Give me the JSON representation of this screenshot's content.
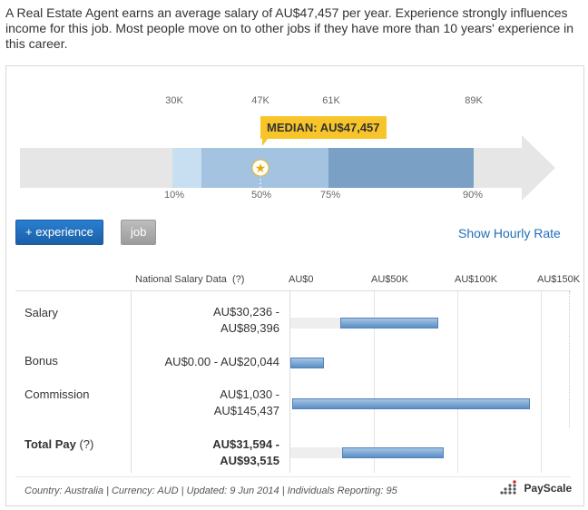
{
  "intro": "A Real Estate Agent earns an average salary of AU$47,457 per year. Experience strongly influences income for this job. Most people move on to other jobs if they have more than 10 years' experience in this career.",
  "range_chart": {
    "top_values": [
      "30K",
      "47K",
      "61K",
      "89K"
    ],
    "bottom_percentiles": [
      "10%",
      "50%",
      "75%",
      "90%"
    ],
    "median_label": "MEDIAN: AU$47,457",
    "segments": [
      {
        "from": "10%",
        "to": "25%",
        "color": "#c7dff0"
      },
      {
        "from": "25%",
        "to": "75%",
        "color": "#a3c3e0"
      },
      {
        "from": "75%",
        "to": "90%",
        "color": "#7aa0c6"
      }
    ]
  },
  "buttons": {
    "experience": "+ experience",
    "job": "job",
    "hourly": "Show Hourly Rate"
  },
  "table": {
    "header_label": "National Salary Data",
    "help": "(?)",
    "axis_ticks": [
      "AU$0",
      "AU$50K",
      "AU$100K",
      "AU$150K"
    ],
    "rows": [
      {
        "label": "Salary",
        "value_line1": "AU$30,236 -",
        "value_line2": "AU$89,396",
        "bold": false,
        "low": 30236,
        "high": 89396,
        "bg_to": 30236
      },
      {
        "label": "Bonus",
        "value_line1": "AU$0.00 - AU$20,044",
        "value_line2": "",
        "bold": false,
        "low": 0,
        "high": 20044
      },
      {
        "label": "Commission",
        "value_line1": "AU$1,030 -",
        "value_line2": "AU$145,437",
        "bold": false,
        "low": 1030,
        "high": 145437
      },
      {
        "label": "Total Pay",
        "help": "(?)",
        "value_line1": "AU$31,594 -",
        "value_line2": "AU$93,515",
        "bold": true,
        "low": 31594,
        "high": 93515,
        "bg_to": 31594
      }
    ]
  },
  "footer": "Country: Australia | Currency: AUD | Updated: 9 Jun 2014 | Individuals Reporting: 95",
  "brand": "PayScale"
}
